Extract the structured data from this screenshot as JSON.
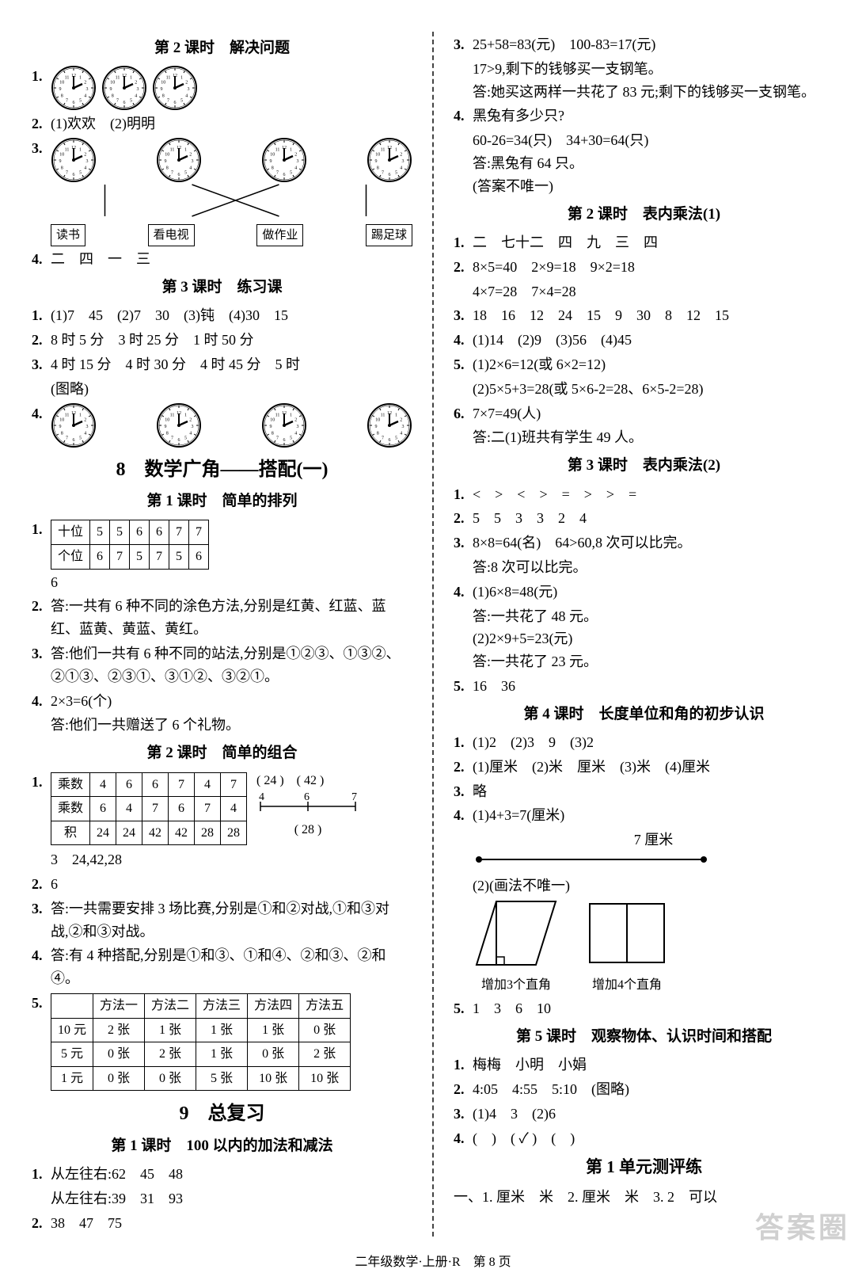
{
  "footer": "二年级数学·上册·R　第 8 页",
  "watermark": "答案圈",
  "left": {
    "h1": "第 2 课时　解决问题",
    "q2": "(1)欢欢　(2)明明",
    "labels3": [
      "读书",
      "看电视",
      "做作业",
      "踢足球"
    ],
    "q4": "二　四　一　三",
    "h2": "第 3 课时　练习课",
    "l2_1": "(1)7　45　(2)7　30　(3)钝　(4)30　15",
    "l2_2": "8 时 5 分　3 时 25 分　1 时 50 分",
    "l2_3": "4 时 15 分　4 时 30 分　4 时 45 分　5 时",
    "l2_3b": "(图略)",
    "unit8": "8　数学广角——搭配(一)",
    "h3": "第 1 课时　简单的排列",
    "t1": {
      "rows": [
        [
          "十位",
          "5",
          "5",
          "6",
          "6",
          "7",
          "7"
        ],
        [
          "个位",
          "6",
          "7",
          "5",
          "7",
          "5",
          "6"
        ]
      ],
      "after": "6"
    },
    "l3_2": "答:一共有 6 种不同的涂色方法,分别是红黄、红蓝、蓝红、蓝黄、黄蓝、黄红。",
    "l3_3": "答:他们一共有 6 种不同的站法,分别是①②③、①③②、②①③、②③①、③①②、③②①。",
    "l3_4a": "2×3=6(个)",
    "l3_4b": "答:他们一共赠送了 6 个礼物。",
    "h4": "第 2 课时　简单的组合",
    "t2": {
      "rows": [
        [
          "乘数",
          "4",
          "6",
          "6",
          "7",
          "4",
          "7"
        ],
        [
          "乘数",
          "6",
          "4",
          "7",
          "6",
          "7",
          "4"
        ],
        [
          "积",
          "24",
          "24",
          "42",
          "42",
          "28",
          "28"
        ]
      ],
      "diag_top": "( 24 )　( 42 )",
      "diag_mid_l": "4",
      "diag_mid_m": "6",
      "diag_mid_r": "7",
      "diag_bot": "( 28 )",
      "after": "3　24,42,28"
    },
    "l4_2": "6",
    "l4_3": "答:一共需要安排 3 场比赛,分别是①和②对战,①和③对战,②和③对战。",
    "l4_4": "答:有 4 种搭配,分别是①和③、①和④、②和③、②和④。",
    "t3": {
      "header": [
        "",
        "方法一",
        "方法二",
        "方法三",
        "方法四",
        "方法五"
      ],
      "rows": [
        [
          "10 元",
          "2 张",
          "1 张",
          "1 张",
          "1 张",
          "0 张"
        ],
        [
          "5 元",
          "0 张",
          "2 张",
          "1 张",
          "0 张",
          "2 张"
        ],
        [
          "1 元",
          "0 张",
          "0 张",
          "5 张",
          "10 张",
          "10 张"
        ]
      ]
    },
    "unit9": "9　总复习",
    "h5": "第 1 课时　100 以内的加法和减法",
    "l5_1a": "从左往右:62　45　48",
    "l5_1b": "从左往右:39　31　93",
    "l5_2": "38　47　75"
  },
  "right": {
    "r3a": "25+58=83(元)　100-83=17(元)",
    "r3b": "17>9,剩下的钱够买一支钢笔。",
    "r3c": "答:她买这两样一共花了 83 元;剩下的钱够买一支钢笔。",
    "r4a": "黑兔有多少只?",
    "r4b": "60-26=34(只)　34+30=64(只)",
    "r4c": "答:黑兔有 64 只。",
    "r4d": "(答案不唯一)",
    "h1": "第 2 课时　表内乘法(1)",
    "l1_1": "二　七十二　四　九　三　四",
    "l1_2a": "8×5=40　2×9=18　9×2=18",
    "l1_2b": "4×7=28　7×4=28",
    "l1_3": "18　16　12　24　15　9　30　8　12　15",
    "l1_4": "(1)14　(2)9　(3)56　(4)45",
    "l1_5a": "(1)2×6=12(或 6×2=12)",
    "l1_5b": "(2)5×5+3=28(或 5×6-2=28、6×5-2=28)",
    "l1_6a": "7×7=49(人)",
    "l1_6b": "答:二(1)班共有学生 49 人。",
    "h2": "第 3 课时　表内乘法(2)",
    "l2_1": "<　>　<　>　=　>　>　=",
    "l2_2": "5　5　3　3　2　4",
    "l2_3a": "8×8=64(名)　64>60,8 次可以比完。",
    "l2_3b": "答:8 次可以比完。",
    "l2_4a": "(1)6×8=48(元)",
    "l2_4b": "答:一共花了 48 元。",
    "l2_4c": "(2)2×9+5=23(元)",
    "l2_4d": "答:一共花了 23 元。",
    "l2_5": "16　36",
    "h3": "第 4 课时　长度单位和角的初步认识",
    "l3_1": "(1)2　(2)3　9　(3)2",
    "l3_2": "(1)厘米　(2)米　厘米　(3)米　(4)厘米",
    "l3_3": "略",
    "l3_4a": "(1)4+3=7(厘米)",
    "nl_label": "7 厘米",
    "l3_4b": "(2)(画法不唯一)",
    "shape1": "增加3个直角",
    "shape2": "增加4个直角",
    "l3_5": "1　3　6　10",
    "h4": "第 5 课时　观察物体、认识时间和搭配",
    "l4_1": "梅梅　小明　小娟",
    "l4_2": "4:05　4:55　5:10　(图略)",
    "l4_3": "(1)4　3　(2)6",
    "l4_4": "(　)　( ✓ )　(　)",
    "h5": "第 1 单元测评练",
    "l5_1": "一、1. 厘米　米　2. 厘米　米　3. 2　可以"
  }
}
